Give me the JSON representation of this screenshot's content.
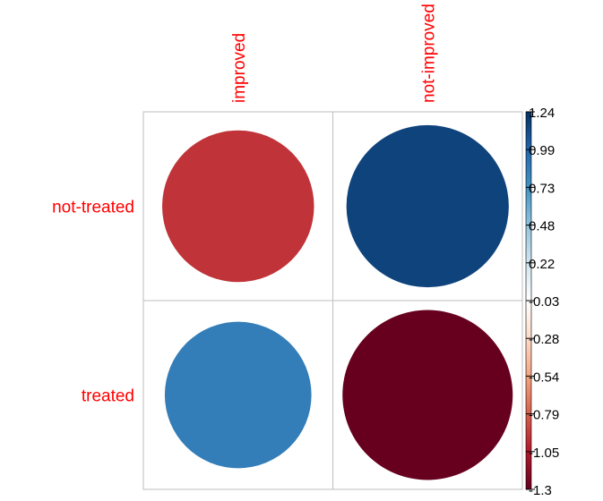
{
  "chart_data": {
    "type": "heatmap",
    "title": "",
    "columns": [
      "improved",
      "not-improved"
    ],
    "rows": [
      "not-treated",
      "treated"
    ],
    "values": [
      [
        -0.95,
        1.15
      ],
      [
        0.85,
        -1.3
      ]
    ],
    "colorbar": {
      "range": [
        -1.3,
        1.24
      ],
      "tick_labels": [
        "1.24",
        "0.99",
        "0.73",
        "0.48",
        "0.22",
        "-0.03",
        "-0.28",
        "-0.54",
        "-0.79",
        "-1.05",
        "-1.3"
      ],
      "colors": [
        "#053061",
        "#2166ac",
        "#4393c3",
        "#92c5de",
        "#d1e5f0",
        "#ffffff",
        "#fddbc7",
        "#f4a582",
        "#d6604d",
        "#b2182b",
        "#67001f"
      ]
    },
    "label_color": "#ff0000",
    "grid": true
  }
}
